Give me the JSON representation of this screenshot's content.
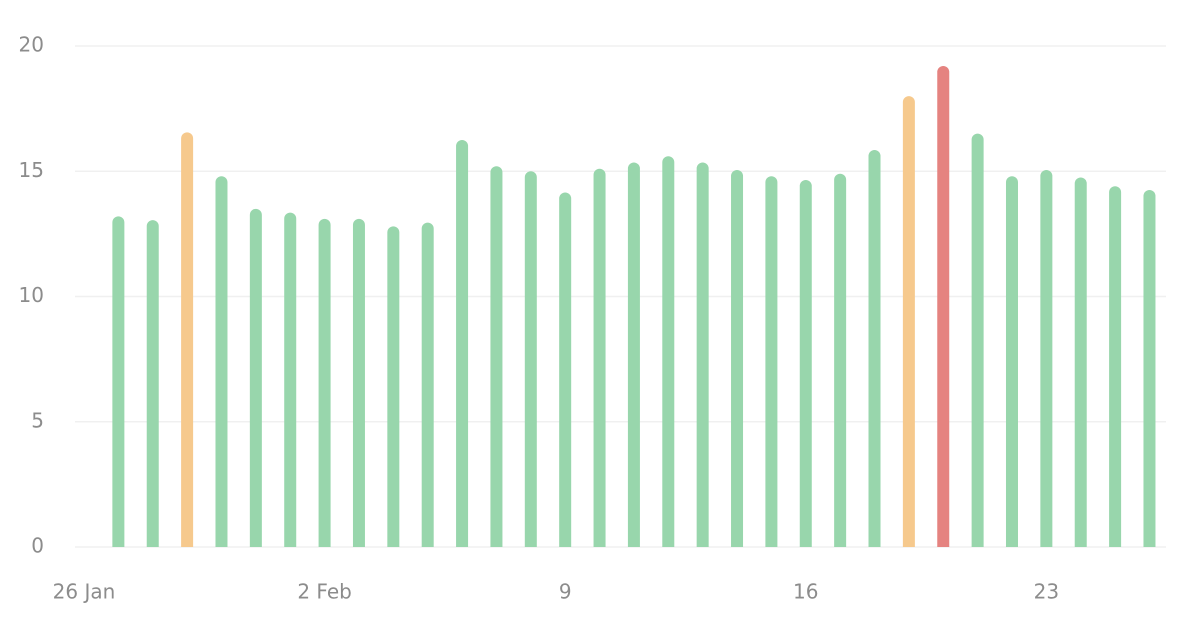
{
  "chart_data": {
    "type": "bar",
    "categories": [
      "26 Jan",
      null,
      null,
      null,
      null,
      null,
      null,
      "2 Feb",
      null,
      null,
      null,
      null,
      null,
      null,
      "9",
      null,
      null,
      null,
      null,
      null,
      null,
      "16",
      null,
      null,
      null,
      null,
      null,
      null,
      "23",
      null,
      null,
      null
    ],
    "values": [
      null,
      13.2,
      13.05,
      16.55,
      14.8,
      13.5,
      13.35,
      13.1,
      13.1,
      12.8,
      12.95,
      16.25,
      15.2,
      15.0,
      14.15,
      15.1,
      15.35,
      15.6,
      15.35,
      15.05,
      14.8,
      14.65,
      14.9,
      15.85,
      18.0,
      19.2,
      16.5,
      14.8,
      15.05,
      14.75,
      14.4,
      14.25
    ],
    "colors": [
      null,
      "#98d6ac",
      "#98d6ac",
      "#f6c98d",
      "#98d6ac",
      "#98d6ac",
      "#98d6ac",
      "#98d6ac",
      "#98d6ac",
      "#98d6ac",
      "#98d6ac",
      "#98d6ac",
      "#98d6ac",
      "#98d6ac",
      "#98d6ac",
      "#98d6ac",
      "#98d6ac",
      "#98d6ac",
      "#98d6ac",
      "#98d6ac",
      "#98d6ac",
      "#98d6ac",
      "#98d6ac",
      "#98d6ac",
      "#f6c98d",
      "#e58380",
      "#98d6ac",
      "#98d6ac",
      "#98d6ac",
      "#98d6ac",
      "#98d6ac",
      "#98d6ac"
    ],
    "ylim": [
      0,
      20
    ],
    "yticks": [
      0,
      5,
      10,
      15,
      20
    ],
    "grid": true
  }
}
